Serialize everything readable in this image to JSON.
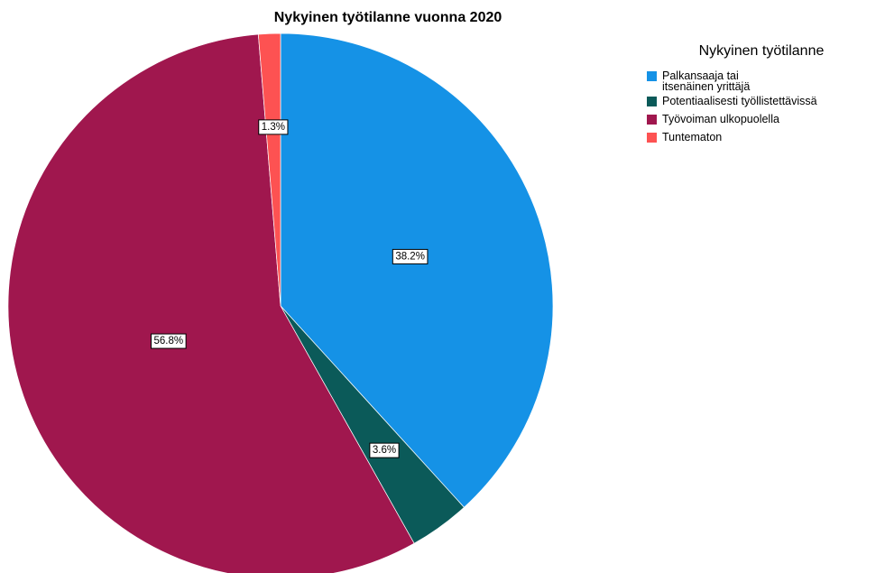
{
  "chart_data": {
    "type": "pie",
    "title": "Nykyinen työtilanne vuonna 2020",
    "legend_title": "Nykyinen työtilanne",
    "categories": [
      "Palkansaaja tai itsenäinen yrittäjä",
      "Potentiaalisesti työllistettävissä",
      "Työvoiman ulkopuolella",
      "Tuntematon"
    ],
    "values": [
      38.2,
      3.6,
      56.8,
      1.3
    ],
    "value_labels": [
      "38.2%",
      "3.6%",
      "56.8%",
      "1.3%"
    ],
    "colors": [
      "#1592e6",
      "#0b5a59",
      "#a0174e",
      "#fd5252"
    ],
    "legend": "top-right"
  }
}
